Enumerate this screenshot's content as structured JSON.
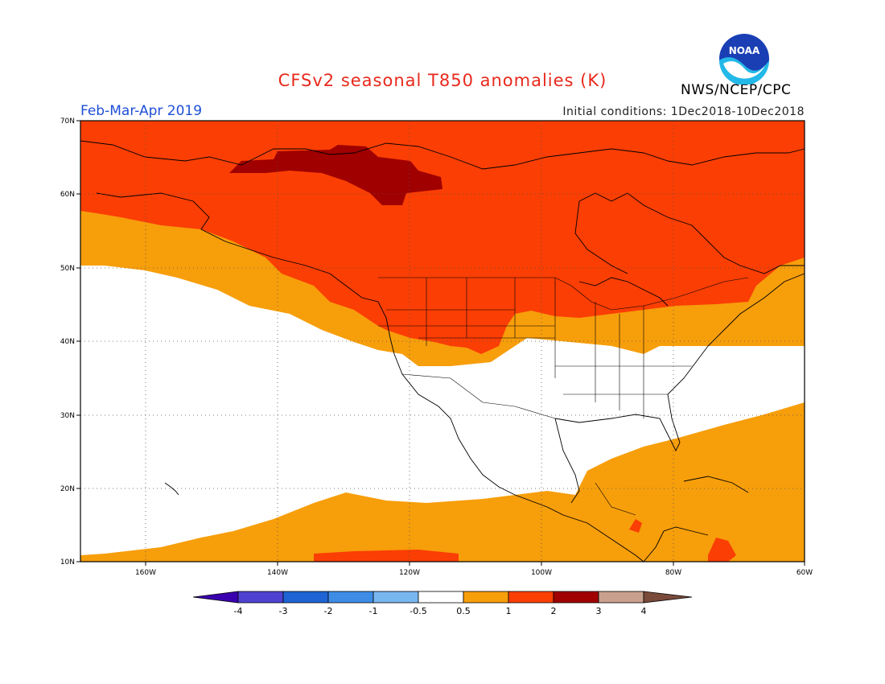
{
  "header": {
    "title": "CFSv2 seasonal T850 anomalies (K)",
    "season": "Feb-Mar-Apr 2019",
    "initial_conditions": "Initial conditions: 1Dec2018-10Dec2018",
    "agency": "NWS/NCEP/CPC",
    "logo_text": "NOAA"
  },
  "map": {
    "lat_labels": [
      "70N",
      "60N",
      "50N",
      "40N",
      "30N",
      "20N",
      "10N"
    ],
    "lon_labels": [
      "160W",
      "140W",
      "120W",
      "100W",
      "80W",
      "60W"
    ],
    "colors": {
      "anom_0_5_1": "#f79e0b",
      "anom_1_2": "#fa3e04",
      "anom_2_3": "#a00000",
      "neutral": "#ffffff"
    }
  },
  "colorbar": {
    "labels": [
      "-4",
      "-3",
      "-2",
      "-1",
      "-0.5",
      "0.5",
      "1",
      "2",
      "3",
      "4"
    ],
    "colors": [
      "#3a00b0",
      "#4f42d2",
      "#1e64d4",
      "#3d8de6",
      "#78b6f0",
      "#ffffff",
      "#f79e0b",
      "#fa3e04",
      "#a00000",
      "#c9a08d",
      "#7a4a3a"
    ]
  }
}
